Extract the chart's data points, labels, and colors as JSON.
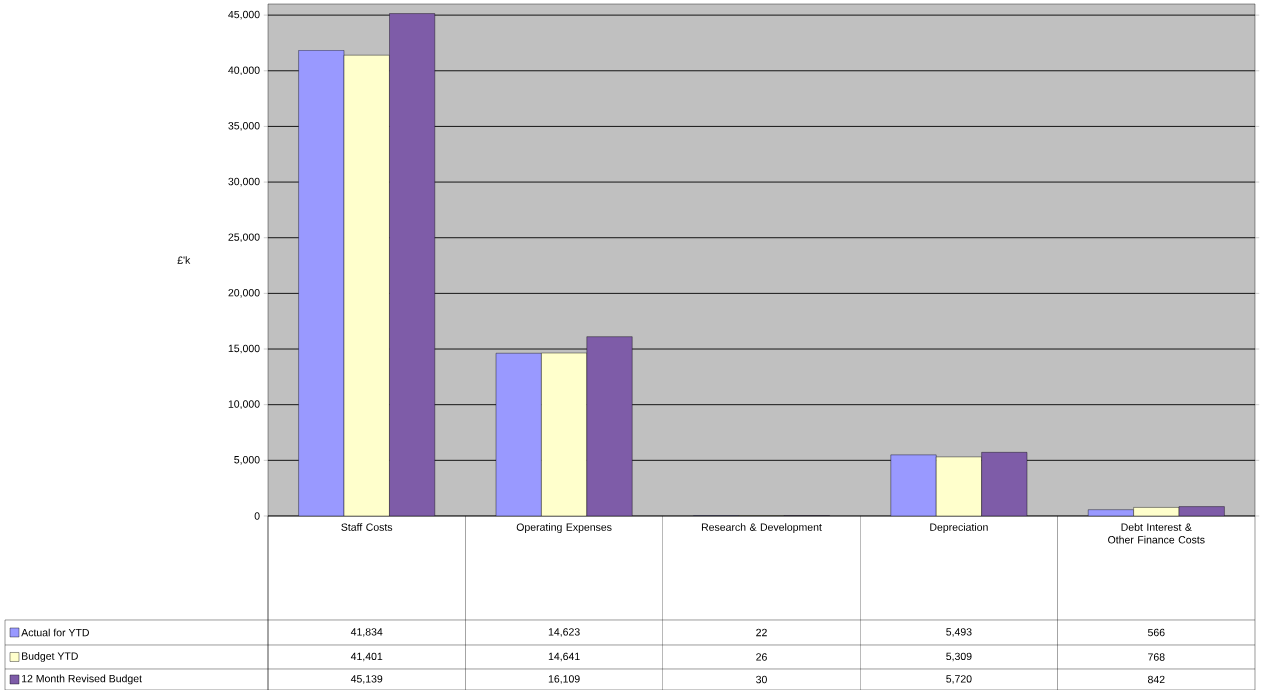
{
  "chart_data": {
    "type": "bar",
    "ylabel": "£'k",
    "categories": [
      "Staff Costs",
      "Operating Expenses",
      "Research & Development",
      "Depreciation",
      "Debt Interest & Other Finance Costs"
    ],
    "series": [
      {
        "name": "Actual for YTD",
        "color": "#9999ff",
        "values": [
          41834,
          14623,
          22,
          5493,
          566
        ],
        "value_labels": [
          "41,834",
          "14,623",
          "22",
          "5,493",
          "566"
        ]
      },
      {
        "name": "Budget YTD",
        "color": "#ffffcc",
        "values": [
          41401,
          14641,
          26,
          5309,
          768
        ],
        "value_labels": [
          "41,401",
          "14,641",
          "26",
          "5,309",
          "768"
        ]
      },
      {
        "name": "12 Month Revised Budget",
        "color": "#7e5ca8",
        "values": [
          45139,
          16109,
          30,
          5720,
          842
        ],
        "value_labels": [
          "45,139",
          "16,109",
          "30",
          "5,720",
          "842"
        ]
      }
    ],
    "ylim": [
      0,
      46000
    ],
    "yticks": [
      0,
      {
        "value": 5000,
        "label": "5,000"
      },
      {
        "value": 10000,
        "label": "10,000"
      },
      {
        "value": 15000,
        "label": "15,000"
      },
      {
        "value": 20000,
        "label": "20,000"
      },
      {
        "value": 25000,
        "label": "25,000"
      },
      {
        "value": 30000,
        "label": "30,000"
      },
      {
        "value": 35000,
        "label": "35,000"
      },
      {
        "value": 40000,
        "label": "40,000"
      },
      {
        "value": 45000,
        "label": "45,000"
      }
    ],
    "grid": "y",
    "legend": "bottom left"
  }
}
